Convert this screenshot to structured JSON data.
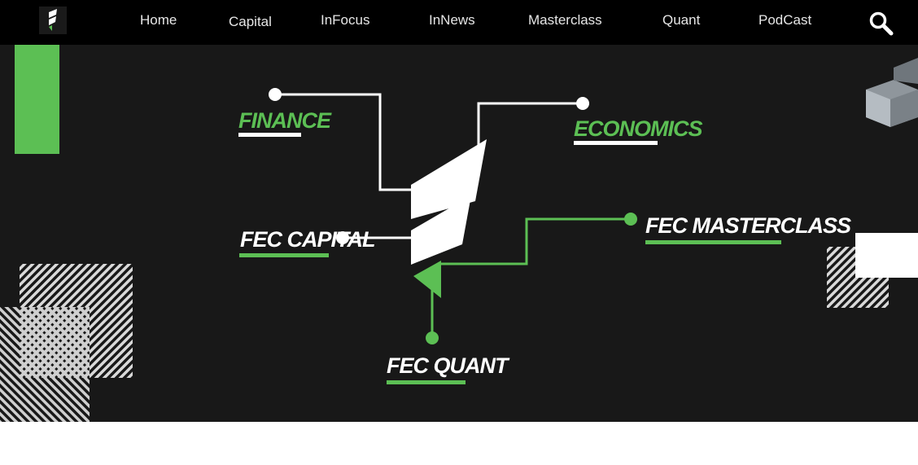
{
  "nav": {
    "items": [
      {
        "key": "home",
        "label": "Home"
      },
      {
        "key": "capital",
        "label": "Capital"
      },
      {
        "key": "infocus",
        "label": "InFocus"
      },
      {
        "key": "innews",
        "label": "InNews"
      },
      {
        "key": "masterclass",
        "label": "Masterclass"
      },
      {
        "key": "quant",
        "label": "Quant"
      },
      {
        "key": "podcast",
        "label": "PodCast"
      }
    ],
    "search_icon": "search-icon",
    "logo_icon": "fec-logo-icon"
  },
  "hero": {
    "labels": {
      "finance": "FINANCE",
      "economics": "ECONOMICS",
      "capital": "FEC CAPITAL",
      "masterclass": "FEC  MASTERCLASS",
      "quant": "FEC QUANT"
    }
  },
  "colors": {
    "accent": "#5cbf54",
    "nav_bg": "#000000",
    "hero_bg": "#181818",
    "text_light": "#e6e6e6"
  }
}
